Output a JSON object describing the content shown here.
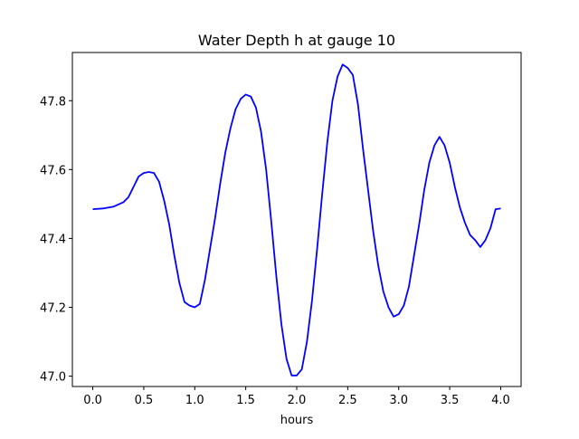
{
  "chart_data": {
    "type": "line",
    "title": "Water Depth h at gauge 10",
    "xlabel": "hours",
    "ylabel": "",
    "xlim": [
      -0.2,
      4.2
    ],
    "ylim": [
      46.97,
      47.94
    ],
    "xticks": [
      0.0,
      0.5,
      1.0,
      1.5,
      2.0,
      2.5,
      3.0,
      3.5,
      4.0
    ],
    "xtick_labels": [
      "0.0",
      "0.5",
      "1.0",
      "1.5",
      "2.0",
      "2.5",
      "3.0",
      "3.5",
      "4.0"
    ],
    "yticks": [
      47.0,
      47.2,
      47.4,
      47.6,
      47.8
    ],
    "ytick_labels": [
      "47.0",
      "47.2",
      "47.4",
      "47.6",
      "47.8"
    ],
    "grid": false,
    "series": [
      {
        "color": "#0000ff",
        "x": [
          0.0,
          0.1,
          0.2,
          0.3,
          0.35,
          0.4,
          0.45,
          0.5,
          0.55,
          0.6,
          0.65,
          0.7,
          0.75,
          0.8,
          0.85,
          0.9,
          0.95,
          1.0,
          1.05,
          1.1,
          1.15,
          1.2,
          1.25,
          1.3,
          1.35,
          1.4,
          1.45,
          1.5,
          1.55,
          1.6,
          1.65,
          1.7,
          1.75,
          1.8,
          1.85,
          1.9,
          1.95,
          2.0,
          2.05,
          2.1,
          2.15,
          2.2,
          2.25,
          2.3,
          2.35,
          2.4,
          2.45,
          2.5,
          2.55,
          2.6,
          2.65,
          2.7,
          2.75,
          2.8,
          2.85,
          2.9,
          2.95,
          3.0,
          3.05,
          3.1,
          3.15,
          3.2,
          3.25,
          3.3,
          3.35,
          3.4,
          3.45,
          3.5,
          3.55,
          3.6,
          3.65,
          3.7,
          3.75,
          3.8,
          3.85,
          3.9,
          3.95,
          4.0
        ],
        "y": [
          47.485,
          47.487,
          47.492,
          47.505,
          47.52,
          47.55,
          47.58,
          47.59,
          47.593,
          47.59,
          47.565,
          47.51,
          47.44,
          47.35,
          47.27,
          47.215,
          47.205,
          47.2,
          47.21,
          47.28,
          47.37,
          47.46,
          47.56,
          47.65,
          47.72,
          47.775,
          47.805,
          47.818,
          47.812,
          47.78,
          47.71,
          47.6,
          47.45,
          47.29,
          47.15,
          47.05,
          47.002,
          47.002,
          47.02,
          47.1,
          47.22,
          47.37,
          47.53,
          47.68,
          47.8,
          47.87,
          47.905,
          47.895,
          47.875,
          47.79,
          47.66,
          47.54,
          47.42,
          47.32,
          47.245,
          47.2,
          47.173,
          47.18,
          47.205,
          47.26,
          47.35,
          47.44,
          47.54,
          47.62,
          47.67,
          47.695,
          47.67,
          47.62,
          47.55,
          47.49,
          47.445,
          47.41,
          47.395,
          47.375,
          47.395,
          47.43,
          47.485,
          47.487
        ]
      }
    ]
  }
}
